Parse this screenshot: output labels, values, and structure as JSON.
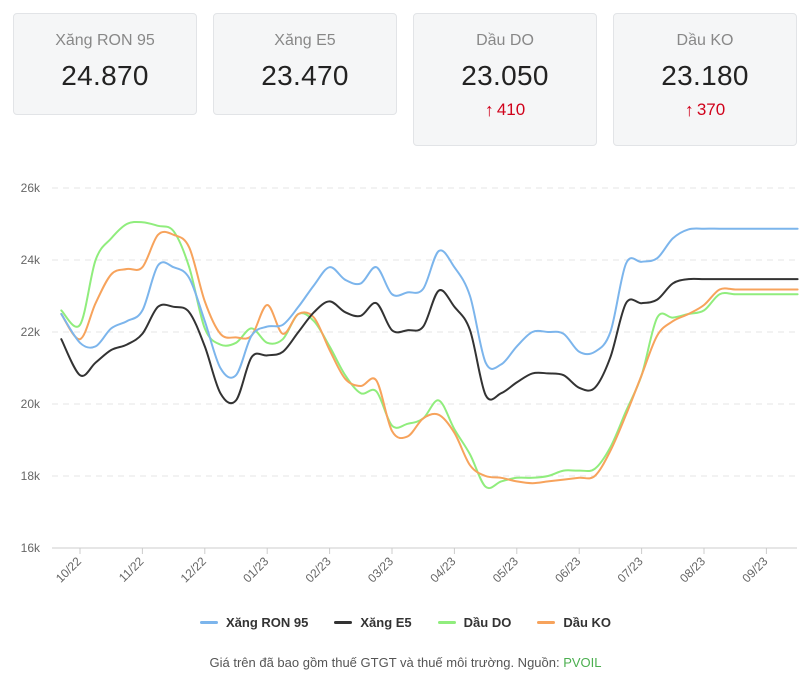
{
  "cards": [
    {
      "label": "Xăng RON 95",
      "value": "24.870",
      "change": ""
    },
    {
      "label": "Xăng E5",
      "value": "23.470",
      "change": ""
    },
    {
      "label": "Dầu DO",
      "value": "23.050",
      "change": "410",
      "direction_icon": "arrow-up-icon"
    },
    {
      "label": "Dầu KO",
      "value": "23.180",
      "change": "370",
      "direction_icon": "arrow-up-icon"
    }
  ],
  "colors": {
    "ron95": "#7cb5ec",
    "e5": "#333333",
    "do": "#90ed7d",
    "ko": "#f7a35c",
    "change_up": "#d0021b",
    "source": "#4caf50"
  },
  "footnote": {
    "text": "Giá trên đã bao gồm thuế GTGT và thuế môi trường. Nguồn: ",
    "source": "PVOIL"
  },
  "chart_data": {
    "type": "line",
    "title": "",
    "xlabel": "",
    "ylabel": "",
    "ylim": [
      16000,
      26000
    ],
    "yticks": [
      16000,
      18000,
      20000,
      22000,
      24000,
      26000
    ],
    "ytick_labels": [
      "16k",
      "18k",
      "20k",
      "22k",
      "24k",
      "26k"
    ],
    "xticks": [
      "10/22",
      "11/22",
      "12/22",
      "01/23",
      "02/23",
      "03/23",
      "04/23",
      "05/23",
      "06/23",
      "07/23",
      "08/23",
      "09/23"
    ],
    "x": [
      -0.3,
      0.0,
      0.25,
      0.5,
      0.75,
      1.0,
      1.25,
      1.5,
      1.75,
      2.0,
      2.25,
      2.5,
      2.75,
      3.0,
      3.25,
      3.5,
      3.75,
      4.0,
      4.25,
      4.5,
      4.75,
      5.0,
      5.25,
      5.5,
      5.75,
      6.0,
      6.25,
      6.5,
      6.75,
      7.0,
      7.25,
      7.5,
      7.75,
      8.0,
      8.25,
      8.5,
      8.75,
      9.0,
      9.25,
      9.5,
      9.75,
      10.0,
      10.25,
      10.5,
      10.75,
      11.0,
      11.25,
      11.5
    ],
    "grid": true,
    "legend_position": "bottom",
    "series": [
      {
        "name": "Xăng RON 95",
        "color_key": "ron95",
        "values": [
          22500,
          21700,
          21600,
          22100,
          22300,
          22600,
          23850,
          23800,
          23500,
          22300,
          21000,
          20800,
          21900,
          22150,
          22200,
          22700,
          23300,
          23800,
          23450,
          23350,
          23800,
          23050,
          23100,
          23200,
          24250,
          23800,
          23000,
          21150,
          21100,
          21600,
          22000,
          22000,
          21950,
          21450,
          21450,
          22000,
          23900,
          23950,
          24050,
          24600,
          24850,
          24870,
          24870,
          24870,
          24870,
          24870,
          24870,
          24870
        ]
      },
      {
        "name": "Xăng E5",
        "color_key": "e5",
        "values": [
          21800,
          20800,
          21150,
          21500,
          21650,
          21950,
          22700,
          22700,
          22550,
          21600,
          20300,
          20100,
          21300,
          21350,
          21450,
          22000,
          22550,
          22850,
          22550,
          22450,
          22800,
          22050,
          22050,
          22150,
          23150,
          22700,
          22050,
          20250,
          20300,
          20600,
          20850,
          20850,
          20800,
          20450,
          20450,
          21300,
          22800,
          22800,
          22900,
          23350,
          23470,
          23470,
          23470,
          23470,
          23470,
          23470,
          23470,
          23470
        ]
      },
      {
        "name": "Dầu DO",
        "color_key": "do",
        "values": [
          22600,
          22200,
          24000,
          24600,
          25000,
          25050,
          24950,
          24800,
          23800,
          22100,
          21650,
          21700,
          22100,
          21700,
          21800,
          22500,
          22300,
          21600,
          20800,
          20300,
          20350,
          19400,
          19450,
          19600,
          20100,
          19300,
          18600,
          17700,
          17850,
          17950,
          17950,
          18000,
          18150,
          18150,
          18200,
          18800,
          19800,
          20800,
          22400,
          22400,
          22500,
          22600,
          23050,
          23050,
          23050,
          23050,
          23050,
          23050
        ]
      },
      {
        "name": "Dầu KO",
        "color_key": "ko",
        "values": [
          22500,
          21800,
          22800,
          23600,
          23750,
          23800,
          24700,
          24700,
          24350,
          22850,
          21950,
          21850,
          21900,
          22750,
          21950,
          22500,
          22400,
          21500,
          20700,
          20500,
          20650,
          19250,
          19100,
          19600,
          19700,
          19200,
          18300,
          18000,
          17950,
          17850,
          17800,
          17850,
          17900,
          17950,
          18000,
          18700,
          19700,
          20800,
          21900,
          22300,
          22500,
          22750,
          23180,
          23180,
          23180,
          23180,
          23180,
          23180
        ]
      }
    ]
  }
}
